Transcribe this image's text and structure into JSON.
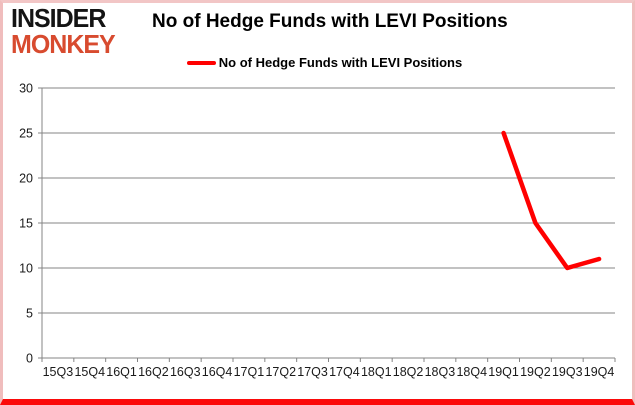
{
  "brand": {
    "line1": "INSIDER",
    "line2": "MONKEY"
  },
  "header": {
    "title": "No of Hedge Funds with LEVI Positions"
  },
  "legend": {
    "label": "No of Hedge Funds with LEVI Positions"
  },
  "colors": {
    "series": "#ff0000",
    "grid": "#848484",
    "axis": "#848484",
    "tick_label": "#1a1a1a",
    "brand_accent": "#d84b2f",
    "brand_primary": "#141414",
    "frame_border": "#f0bdbd",
    "frame_bottom": "#fb0a0a",
    "background": "#ffffff"
  },
  "chart_data": {
    "type": "line",
    "title": "No of Hedge Funds with LEVI Positions",
    "categories": [
      "15Q3",
      "15Q4",
      "16Q1",
      "16Q2",
      "16Q3",
      "16Q4",
      "17Q1",
      "17Q2",
      "17Q3",
      "17Q4",
      "18Q1",
      "18Q2",
      "18Q3",
      "18Q4",
      "19Q1",
      "19Q2",
      "19Q3",
      "19Q4"
    ],
    "series": [
      {
        "name": "No of Hedge Funds with LEVI Positions",
        "color": "#ff0000",
        "values": [
          null,
          null,
          null,
          null,
          null,
          null,
          null,
          null,
          null,
          null,
          null,
          null,
          null,
          null,
          25,
          15,
          10,
          11
        ]
      }
    ],
    "xlabel": "",
    "ylabel": "",
    "ylim": [
      0,
      30
    ],
    "yticks": [
      0,
      5,
      10,
      15,
      20,
      25,
      30
    ],
    "grid": true,
    "legend_position": "top-center"
  }
}
